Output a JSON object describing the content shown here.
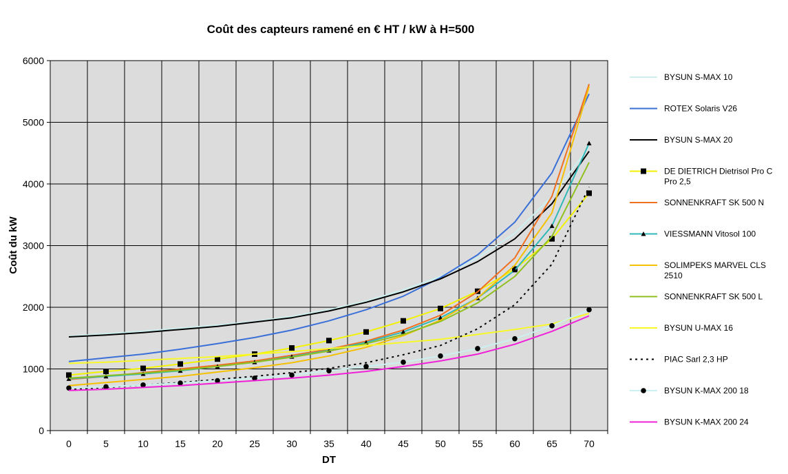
{
  "chart_data": {
    "type": "line",
    "title": "Coût des capteurs ramené en € HT / kW à H=500",
    "xlabel": "DT",
    "ylabel": "Coût du kW",
    "x": [
      0,
      5,
      10,
      15,
      20,
      25,
      30,
      35,
      40,
      45,
      50,
      55,
      60,
      65,
      70
    ],
    "xlim": [
      0,
      70
    ],
    "ylim": [
      0,
      6000
    ],
    "yticks": [
      0,
      1000,
      2000,
      3000,
      4000,
      5000,
      6000
    ],
    "grid": true,
    "legend_position": "right",
    "plot_background": "#dcdcdc",
    "series": [
      {
        "name": "BYSUN S-MAX 10",
        "lines": [
          "BYSUN S-MAX 10"
        ],
        "color": "#ccf0f0",
        "style": "solid",
        "marker": "none",
        "values": [
          1530,
          1570,
          1610,
          1660,
          1710,
          1770,
          1850,
          1960,
          2100,
          2280,
          2500,
          2800,
          3200,
          3800,
          4600
        ]
      },
      {
        "name": "ROTEX Solaris V26",
        "lines": [
          "ROTEX Solaris V26"
        ],
        "color": "#3a6fd8",
        "style": "solid",
        "marker": "none",
        "values": [
          1120,
          1180,
          1240,
          1320,
          1410,
          1510,
          1630,
          1780,
          1960,
          2180,
          2480,
          2850,
          3380,
          4180,
          5460
        ]
      },
      {
        "name": "BYSUN S-MAX 20",
        "lines": [
          "BYSUN S-MAX 20"
        ],
        "color": "#000000",
        "style": "solid",
        "marker": "none",
        "values": [
          1520,
          1550,
          1590,
          1640,
          1690,
          1760,
          1830,
          1940,
          2080,
          2250,
          2460,
          2740,
          3110,
          3680,
          4530
        ]
      },
      {
        "name": "DE DIETRICH Dietrisol Pro C Pro 2,5",
        "lines": [
          "DE DIETRICH Dietrisol Pro C",
          "Pro 2,5"
        ],
        "color": "#f2f200",
        "style": "solid",
        "marker": "square",
        "values": [
          900,
          960,
          1010,
          1080,
          1160,
          1240,
          1340,
          1460,
          1600,
          1780,
          1980,
          2260,
          2620,
          3110,
          3850
        ]
      },
      {
        "name": "SONNENKRAFT SK 500 N",
        "lines": [
          "SONNENKRAFT SK 500 N"
        ],
        "color": "#f07020",
        "style": "solid",
        "marker": "none",
        "values": [
          830,
          880,
          940,
          1000,
          1060,
          1130,
          1220,
          1320,
          1450,
          1630,
          1870,
          2250,
          2800,
          3800,
          5620
        ]
      },
      {
        "name": "VIESSMANN Vitosol 100",
        "lines": [
          "VIESSMANN Vitosol 100"
        ],
        "color": "#30b8b8",
        "style": "solid",
        "marker": "triangle",
        "values": [
          840,
          880,
          920,
          970,
          1040,
          1110,
          1200,
          1300,
          1430,
          1600,
          1830,
          2150,
          2600,
          3320,
          4660
        ]
      },
      {
        "name": "SOLIMPEKS MARVEL CLS 2510",
        "lines": [
          "SOLIMPEKS MARVEL CLS",
          "2510"
        ],
        "color": "#f5c000",
        "style": "solid",
        "marker": "none",
        "values": [
          730,
          780,
          830,
          880,
          950,
          1020,
          1100,
          1210,
          1350,
          1540,
          1790,
          2150,
          2680,
          3530,
          5580
        ]
      },
      {
        "name": "SONNENKRAFT SK 500 L",
        "lines": [
          "SONNENKRAFT SK 500 L"
        ],
        "color": "#90c020",
        "style": "solid",
        "marker": "none",
        "values": [
          850,
          890,
          930,
          980,
          1040,
          1110,
          1190,
          1290,
          1410,
          1560,
          1770,
          2070,
          2500,
          3150,
          4350
        ]
      },
      {
        "name": "BYSUN U-MAX 16",
        "lines": [
          "BYSUN U-MAX 16"
        ],
        "color": "#f8f828",
        "style": "solid",
        "marker": "none",
        "values": [
          1090,
          1110,
          1140,
          1170,
          1200,
          1240,
          1280,
          1330,
          1380,
          1430,
          1480,
          1560,
          1640,
          1730,
          1900
        ]
      },
      {
        "name": "PIAC Sarl 2,3 HP",
        "lines": [
          "PIAC Sarl 2,3 HP"
        ],
        "color": "#000000",
        "style": "dashed",
        "marker": "none",
        "values": [
          670,
          700,
          740,
          780,
          830,
          880,
          940,
          1010,
          1100,
          1230,
          1380,
          1650,
          2040,
          2700,
          3950
        ]
      },
      {
        "name": "BYSUN K-MAX 200 18",
        "lines": [
          "BYSUN K-MAX 200 18"
        ],
        "color": "#ccf0f0",
        "style": "solid",
        "marker": "circle",
        "values": [
          690,
          710,
          740,
          770,
          810,
          850,
          900,
          970,
          1040,
          1110,
          1210,
          1330,
          1490,
          1700,
          1960
        ]
      },
      {
        "name": "BYSUN K-MAX 200 24",
        "lines": [
          "BYSUN K-MAX 200 24"
        ],
        "color": "#f020d8",
        "style": "solid",
        "marker": "none",
        "values": [
          650,
          670,
          700,
          730,
          770,
          810,
          850,
          900,
          960,
          1040,
          1130,
          1240,
          1400,
          1610,
          1860
        ]
      }
    ]
  }
}
